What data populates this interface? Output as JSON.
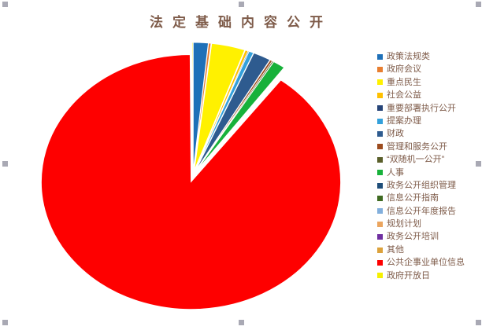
{
  "title": {
    "text": "法定基础内容公开",
    "color": "#7E5B49"
  },
  "chart_data": {
    "type": "pie",
    "title": "法定基础内容公开",
    "exploded": true,
    "start_angle_deg": 0,
    "direction": "clockwise",
    "legend_position": "right",
    "legend_text_color": "#7E5B49",
    "categories": [
      "政策法规类",
      "政府会议",
      "重点民生",
      "社会公益",
      "重要部署执行公开",
      "提案办理",
      "财政",
      "管理和服务公开",
      "“双随机一公开”",
      "人事",
      "政务公开组织管理",
      "信息公开指南",
      "信息公开年度报告",
      "规划计划",
      "政务公开培训",
      "其他",
      "公共企事业单位信息",
      "政府开放日"
    ],
    "values_pct": [
      1.6,
      0.25,
      3.6,
      0.3,
      0.1,
      0.5,
      1.9,
      0.25,
      0.15,
      1.3,
      0.05,
      0.05,
      0.05,
      0.05,
      0.05,
      0.05,
      89.65,
      0.1
    ],
    "colors": [
      "#1E70B8",
      "#E87E30",
      "#FFF100",
      "#FFC000",
      "#264478",
      "#33A0DB",
      "#2E5B8F",
      "#9C4B1E",
      "#5A5F2A",
      "#17B13A",
      "#1F4E79",
      "#3F6A21",
      "#82AFDC",
      "#EBA55F",
      "#6F2FA0",
      "#DCA23C",
      "#FE0000",
      "#F5F000"
    ]
  },
  "selection": {
    "handle_color": "#A9A9B4"
  }
}
